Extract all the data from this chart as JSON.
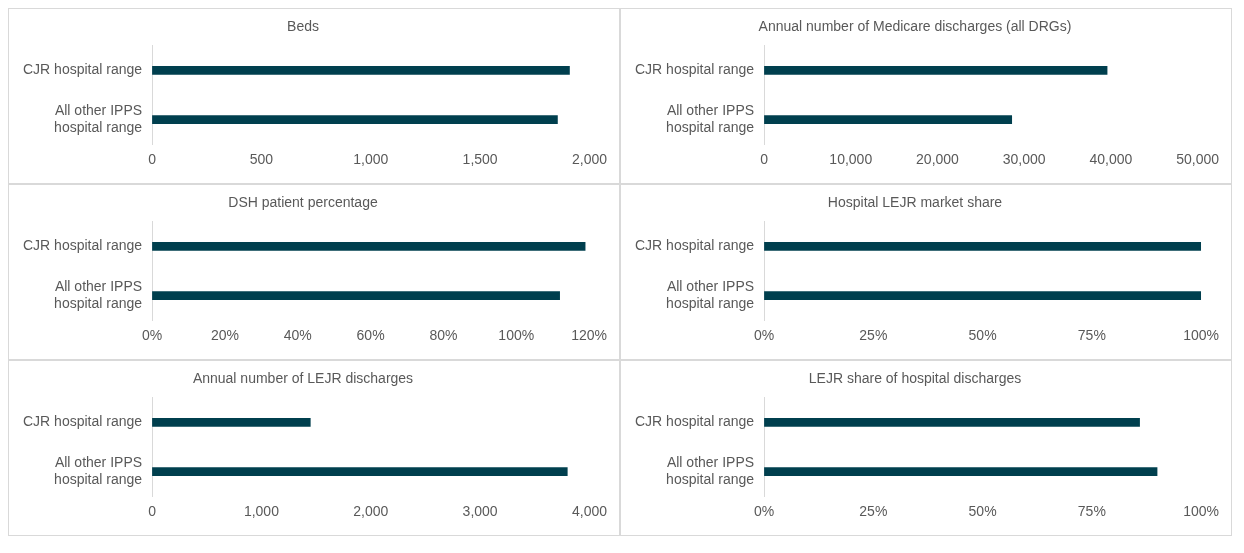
{
  "chart_data": [
    {
      "type": "bar",
      "orientation": "horizontal",
      "title": "Beds",
      "categories": [
        "CJR hospital range",
        "All other IPPS hospital range"
      ],
      "values": [
        1910,
        1855
      ],
      "color": "#003f4e",
      "xlim": [
        0,
        2000
      ],
      "xticks": [
        {
          "value": 0,
          "label": "0"
        },
        {
          "value": 500,
          "label": "500"
        },
        {
          "value": 1000,
          "label": "1,000"
        },
        {
          "value": 1500,
          "label": "1,500"
        },
        {
          "value": 2000,
          "label": "2,000"
        }
      ],
      "grid": false
    },
    {
      "type": "bar",
      "orientation": "horizontal",
      "title": "Annual number of Medicare discharges (all DRGs)",
      "categories": [
        "CJR hospital range",
        "All other IPPS hospital range"
      ],
      "values": [
        39600,
        28600
      ],
      "color": "#003f4e",
      "xlim": [
        0,
        50000
      ],
      "xticks": [
        {
          "value": 0,
          "label": "0"
        },
        {
          "value": 10000,
          "label": "10,000"
        },
        {
          "value": 20000,
          "label": "20,000"
        },
        {
          "value": 30000,
          "label": "30,000"
        },
        {
          "value": 40000,
          "label": "40,000"
        },
        {
          "value": 50000,
          "label": "50,000"
        }
      ],
      "grid": false
    },
    {
      "type": "bar",
      "orientation": "horizontal",
      "title": "DSH patient percentage",
      "categories": [
        "CJR hospital range",
        "All other IPPS hospital range"
      ],
      "values": [
        119,
        112
      ],
      "color": "#003f4e",
      "xlim": [
        0,
        120
      ],
      "xticks": [
        {
          "value": 0,
          "label": "0%"
        },
        {
          "value": 20,
          "label": "20%"
        },
        {
          "value": 40,
          "label": "40%"
        },
        {
          "value": 60,
          "label": "60%"
        },
        {
          "value": 80,
          "label": "80%"
        },
        {
          "value": 100,
          "label": "100%"
        },
        {
          "value": 120,
          "label": "120%"
        }
      ],
      "grid": false
    },
    {
      "type": "bar",
      "orientation": "horizontal",
      "title": "Hospital LEJR market share",
      "categories": [
        "CJR hospital range",
        "All other IPPS hospital range"
      ],
      "values": [
        100,
        100
      ],
      "color": "#003f4e",
      "xlim": [
        0,
        100
      ],
      "xticks": [
        {
          "value": 0,
          "label": "0%"
        },
        {
          "value": 25,
          "label": "25%"
        },
        {
          "value": 50,
          "label": "50%"
        },
        {
          "value": 75,
          "label": "75%"
        },
        {
          "value": 100,
          "label": "100%"
        }
      ],
      "grid": false
    },
    {
      "type": "bar",
      "orientation": "horizontal",
      "title": "Annual number of LEJR discharges",
      "categories": [
        "CJR hospital range",
        "All other IPPS hospital range"
      ],
      "values": [
        1450,
        3800
      ],
      "color": "#003f4e",
      "xlim": [
        0,
        4000
      ],
      "xticks": [
        {
          "value": 0,
          "label": "0"
        },
        {
          "value": 1000,
          "label": "1,000"
        },
        {
          "value": 2000,
          "label": "2,000"
        },
        {
          "value": 3000,
          "label": "3,000"
        },
        {
          "value": 4000,
          "label": "4,000"
        }
      ],
      "grid": false
    },
    {
      "type": "bar",
      "orientation": "horizontal",
      "title": "LEJR share of hospital discharges",
      "categories": [
        "CJR hospital range",
        "All other IPPS hospital range"
      ],
      "values": [
        86,
        90
      ],
      "color": "#003f4e",
      "xlim": [
        0,
        100
      ],
      "xticks": [
        {
          "value": 0,
          "label": "0%"
        },
        {
          "value": 25,
          "label": "25%"
        },
        {
          "value": 50,
          "label": "50%"
        },
        {
          "value": 75,
          "label": "75%"
        },
        {
          "value": 100,
          "label": "100%"
        }
      ],
      "grid": false
    }
  ]
}
